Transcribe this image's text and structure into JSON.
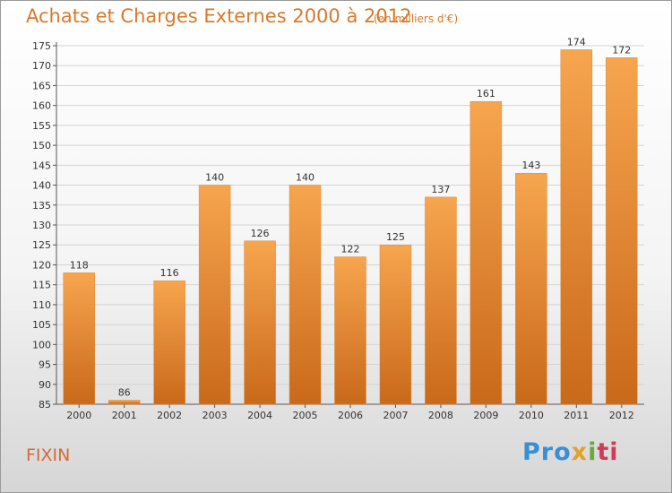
{
  "header": {
    "title": "Achats et Charges Externes 2000 à 2012",
    "subtitle": "(en milliers d'€)"
  },
  "footer": {
    "commune": "FIXIN",
    "logo_text": "Proxiti"
  },
  "colors": {
    "bar_top": "#f7a54f",
    "bar_bottom": "#c9691a",
    "title": "#d8792a",
    "grid": "#d4d4d4"
  },
  "chart_data": {
    "type": "bar",
    "title": "Achats et Charges Externes 2000 à 2012",
    "subtitle": "(en milliers d'€)",
    "xlabel": "",
    "ylabel": "",
    "categories": [
      "2000",
      "2001",
      "2002",
      "2003",
      "2004",
      "2005",
      "2006",
      "2007",
      "2008",
      "2009",
      "2010",
      "2011",
      "2012"
    ],
    "values": [
      118,
      86,
      116,
      140,
      126,
      140,
      122,
      125,
      137,
      161,
      143,
      174,
      172
    ],
    "ylim": [
      85,
      175
    ],
    "ytick_step": 5,
    "grid": true,
    "legend": "none"
  }
}
